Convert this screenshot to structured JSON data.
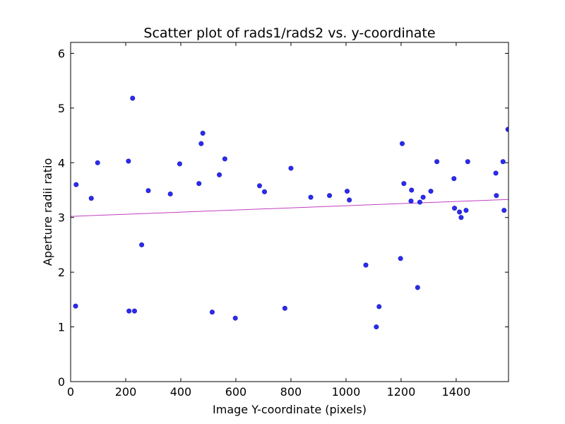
{
  "chart_data": {
    "type": "scatter",
    "title": "Scatter plot of rads1/rads2 vs. y-coordinate",
    "xlabel": "Image Y-coordinate (pixels)",
    "ylabel": "Aperture radii ratio",
    "xlim": [
      0,
      1590
    ],
    "ylim": [
      0,
      6.2
    ],
    "x_ticks": [
      0,
      200,
      400,
      600,
      800,
      1000,
      1200,
      1400
    ],
    "y_ticks": [
      0,
      1,
      2,
      3,
      4,
      5,
      6
    ],
    "grid": false,
    "legend": "none",
    "point_color": "#2b2bf0",
    "fit_line_color": "#c040c0",
    "points": [
      {
        "x": 20,
        "y": 3.6
      },
      {
        "x": 18,
        "y": 1.38
      },
      {
        "x": 75,
        "y": 3.35
      },
      {
        "x": 98,
        "y": 4.0
      },
      {
        "x": 210,
        "y": 4.03
      },
      {
        "x": 212,
        "y": 1.29
      },
      {
        "x": 225,
        "y": 5.18
      },
      {
        "x": 232,
        "y": 1.29
      },
      {
        "x": 258,
        "y": 2.5
      },
      {
        "x": 282,
        "y": 3.49
      },
      {
        "x": 362,
        "y": 3.43
      },
      {
        "x": 396,
        "y": 3.98
      },
      {
        "x": 466,
        "y": 3.62
      },
      {
        "x": 474,
        "y": 4.35
      },
      {
        "x": 480,
        "y": 4.54
      },
      {
        "x": 514,
        "y": 1.27
      },
      {
        "x": 540,
        "y": 3.78
      },
      {
        "x": 560,
        "y": 4.07
      },
      {
        "x": 598,
        "y": 1.16
      },
      {
        "x": 686,
        "y": 3.58
      },
      {
        "x": 704,
        "y": 3.47
      },
      {
        "x": 778,
        "y": 1.34
      },
      {
        "x": 800,
        "y": 3.9
      },
      {
        "x": 872,
        "y": 3.37
      },
      {
        "x": 940,
        "y": 3.4
      },
      {
        "x": 1004,
        "y": 3.48
      },
      {
        "x": 1012,
        "y": 3.32
      },
      {
        "x": 1072,
        "y": 2.13
      },
      {
        "x": 1110,
        "y": 1.0
      },
      {
        "x": 1120,
        "y": 1.37
      },
      {
        "x": 1198,
        "y": 2.25
      },
      {
        "x": 1204,
        "y": 4.35
      },
      {
        "x": 1210,
        "y": 3.62
      },
      {
        "x": 1236,
        "y": 3.3
      },
      {
        "x": 1238,
        "y": 3.5
      },
      {
        "x": 1260,
        "y": 1.72
      },
      {
        "x": 1268,
        "y": 3.28
      },
      {
        "x": 1280,
        "y": 3.37
      },
      {
        "x": 1308,
        "y": 3.48
      },
      {
        "x": 1330,
        "y": 4.02
      },
      {
        "x": 1392,
        "y": 3.71
      },
      {
        "x": 1394,
        "y": 3.17
      },
      {
        "x": 1412,
        "y": 3.1
      },
      {
        "x": 1418,
        "y": 3.0
      },
      {
        "x": 1436,
        "y": 3.13
      },
      {
        "x": 1442,
        "y": 4.02
      },
      {
        "x": 1544,
        "y": 3.81
      },
      {
        "x": 1546,
        "y": 3.4
      },
      {
        "x": 1570,
        "y": 4.02
      },
      {
        "x": 1574,
        "y": 3.13
      },
      {
        "x": 1588,
        "y": 4.61
      }
    ],
    "fit_line": {
      "x": [
        0,
        1590
      ],
      "y": [
        3.02,
        3.33
      ]
    }
  }
}
